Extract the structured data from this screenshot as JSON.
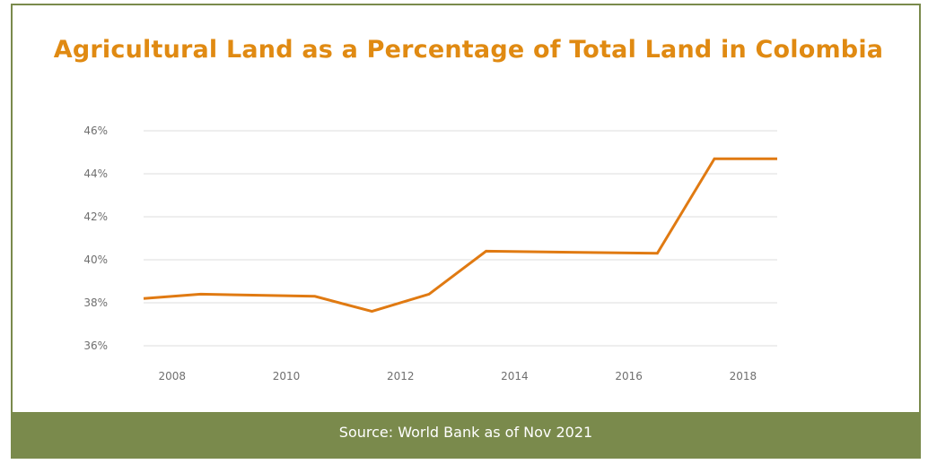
{
  "chart_data": {
    "type": "line",
    "title": "Agricultural Land as a Percentage of Total Land in Colombia",
    "xlabel": "",
    "ylabel": "",
    "x": [
      2007.5,
      2008.5,
      2010.5,
      2011.5,
      2012.5,
      2013.5,
      2016.5,
      2017.5,
      2018.6
    ],
    "values": [
      38.2,
      38.4,
      38.3,
      37.6,
      38.4,
      40.4,
      40.3,
      44.7,
      44.7
    ],
    "x_ticks": [
      "2008",
      "2010",
      "2012",
      "2014",
      "2016",
      "2018"
    ],
    "y_ticks": [
      "36%",
      "38%",
      "40%",
      "42%",
      "44%",
      "46%"
    ],
    "ylim": [
      36,
      46
    ],
    "grid": "horizontal",
    "line_color": "#e07a12",
    "grid_color": "#dddddd",
    "title_color": "#e08a12"
  },
  "footer": {
    "source": "Source: World Bank as of Nov 2021",
    "color": "#7a8a4c"
  }
}
